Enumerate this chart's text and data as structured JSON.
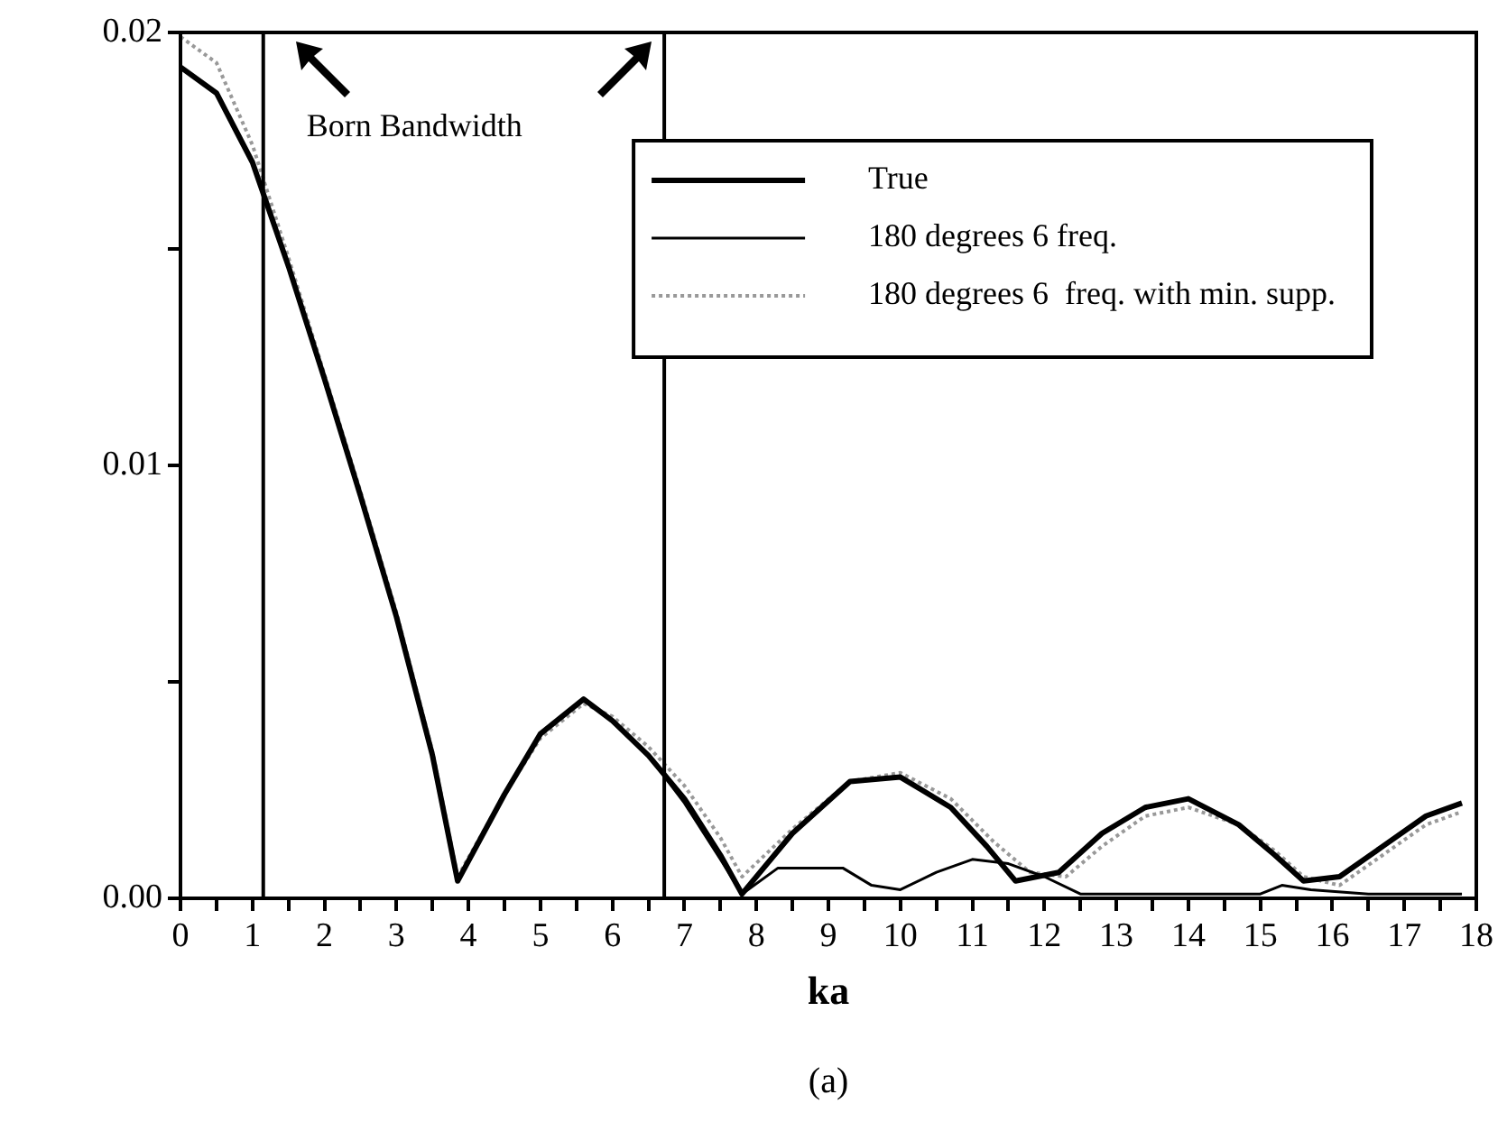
{
  "chart_data": {
    "type": "line",
    "xlabel": "ka",
    "annotations": [
      "Born Bandwidth",
      "(a)"
    ],
    "xlim": [
      0,
      18
    ],
    "xticks": [
      0,
      {
        "value": 0.5,
        "label": null
      },
      1,
      {
        "value": 1.5,
        "label": null
      },
      2,
      {
        "value": 2.5,
        "label": null
      },
      3,
      {
        "value": 3.5,
        "label": null
      },
      4,
      {
        "value": 4.5,
        "label": null
      },
      5,
      {
        "value": 5.5,
        "label": null
      },
      6,
      {
        "value": 6.5,
        "label": null
      },
      7,
      {
        "value": 7.5,
        "label": null
      },
      8,
      {
        "value": 8.5,
        "label": null
      },
      9,
      {
        "value": 9.5,
        "label": null
      },
      10,
      {
        "value": 10.5,
        "label": null
      },
      11,
      {
        "value": 11.5,
        "label": null
      },
      12,
      {
        "value": 12.5,
        "label": null
      },
      13,
      {
        "value": 13.5,
        "label": null
      },
      14,
      {
        "value": 14.5,
        "label": null
      },
      15,
      {
        "value": 15.5,
        "label": null
      },
      16,
      {
        "value": 16.5,
        "label": null
      },
      17,
      {
        "value": 17.5,
        "label": null
      },
      18
    ],
    "ylim": [
      0,
      0.02
    ],
    "yticks": [
      {
        "value": 0,
        "label": "0.00"
      },
      {
        "value": 0.005,
        "label": null
      },
      0.01,
      {
        "value": 0.015,
        "label": null
      },
      0.02
    ],
    "grid": false,
    "legend": "top right",
    "marker": "none",
    "ref_lines": [
      {
        "axis": "x",
        "value": 1.15,
        "color": "#000000"
      },
      {
        "axis": "x",
        "value": 6.72,
        "color": "#000000"
      }
    ],
    "series": [
      {
        "name": "True",
        "color": "#000000",
        "line_style": "solid",
        "x": [
          0,
          0.5,
          1,
          1.5,
          2,
          2.5,
          3,
          3.5,
          3.85,
          4.5,
          5,
          5.6,
          6,
          6.5,
          7,
          7.5,
          7.8,
          8.5,
          9.3,
          10,
          10.7,
          11.2,
          11.6,
          12.2,
          12.8,
          13.4,
          14,
          14.7,
          15.2,
          15.6,
          16.1,
          16.7,
          17.3,
          17.8
        ],
        "values": [
          0.0192,
          0.0186,
          0.017,
          0.0146,
          0.012,
          0.0093,
          0.0065,
          0.0033,
          0.0004,
          0.0024,
          0.0038,
          0.0046,
          0.0041,
          0.0033,
          0.0023,
          0.001,
          0.0001,
          0.0015,
          0.0027,
          0.0028,
          0.0021,
          0.0012,
          0.0004,
          0.0006,
          0.0015,
          0.0021,
          0.0023,
          0.0017,
          0.001,
          0.0004,
          0.0005,
          0.0012,
          0.0019,
          0.0022
        ]
      },
      {
        "name": "180 degrees 6 freq.",
        "color": "#000000",
        "line_style": "solid",
        "x": [
          0,
          0.5,
          1,
          1.5,
          2,
          2.5,
          3,
          3.5,
          3.85,
          4.5,
          5,
          5.6,
          6,
          6.5,
          7,
          7.5,
          7.8,
          8.3,
          9.2,
          9.6,
          10,
          10.5,
          11,
          11.5,
          12,
          12.5,
          13,
          14,
          15,
          15.3,
          15.7,
          16.5,
          17.8
        ],
        "values": [
          0.0192,
          0.0186,
          0.017,
          0.0146,
          0.012,
          0.0093,
          0.0065,
          0.0033,
          0.0004,
          0.0024,
          0.0038,
          0.0046,
          0.0041,
          0.0033,
          0.0022,
          0.0009,
          0.0001,
          0.0007,
          0.0007,
          0.0003,
          0.0002,
          0.0006,
          0.0009,
          0.0008,
          0.0005,
          0.0001,
          0.0001,
          0.0001,
          0.0001,
          0.0003,
          0.0002,
          0.0001,
          0.0001
        ]
      },
      {
        "name": "180 degrees 6  freq. with min. supp.",
        "color": "#999999",
        "line_style": "dotted",
        "x": [
          0,
          0.5,
          1,
          1.5,
          2,
          2.5,
          3,
          3.5,
          3.85,
          4.5,
          5,
          5.6,
          6,
          6.5,
          7,
          7.5,
          7.8,
          8.5,
          9.3,
          10,
          10.7,
          11.3,
          11.8,
          12.3,
          12.8,
          13.4,
          14,
          14.7,
          15.2,
          15.6,
          16.1,
          16.7,
          17.3,
          17.8
        ],
        "values": [
          0.0199,
          0.0193,
          0.0174,
          0.0148,
          0.0121,
          0.0094,
          0.0066,
          0.0034,
          0.0005,
          0.0024,
          0.0037,
          0.0045,
          0.0042,
          0.0035,
          0.0026,
          0.0014,
          0.0005,
          0.0016,
          0.0027,
          0.0029,
          0.0023,
          0.0013,
          0.0006,
          0.0005,
          0.0012,
          0.0019,
          0.0021,
          0.0017,
          0.0011,
          0.0005,
          0.0003,
          0.001,
          0.0017,
          0.002
        ]
      }
    ]
  }
}
